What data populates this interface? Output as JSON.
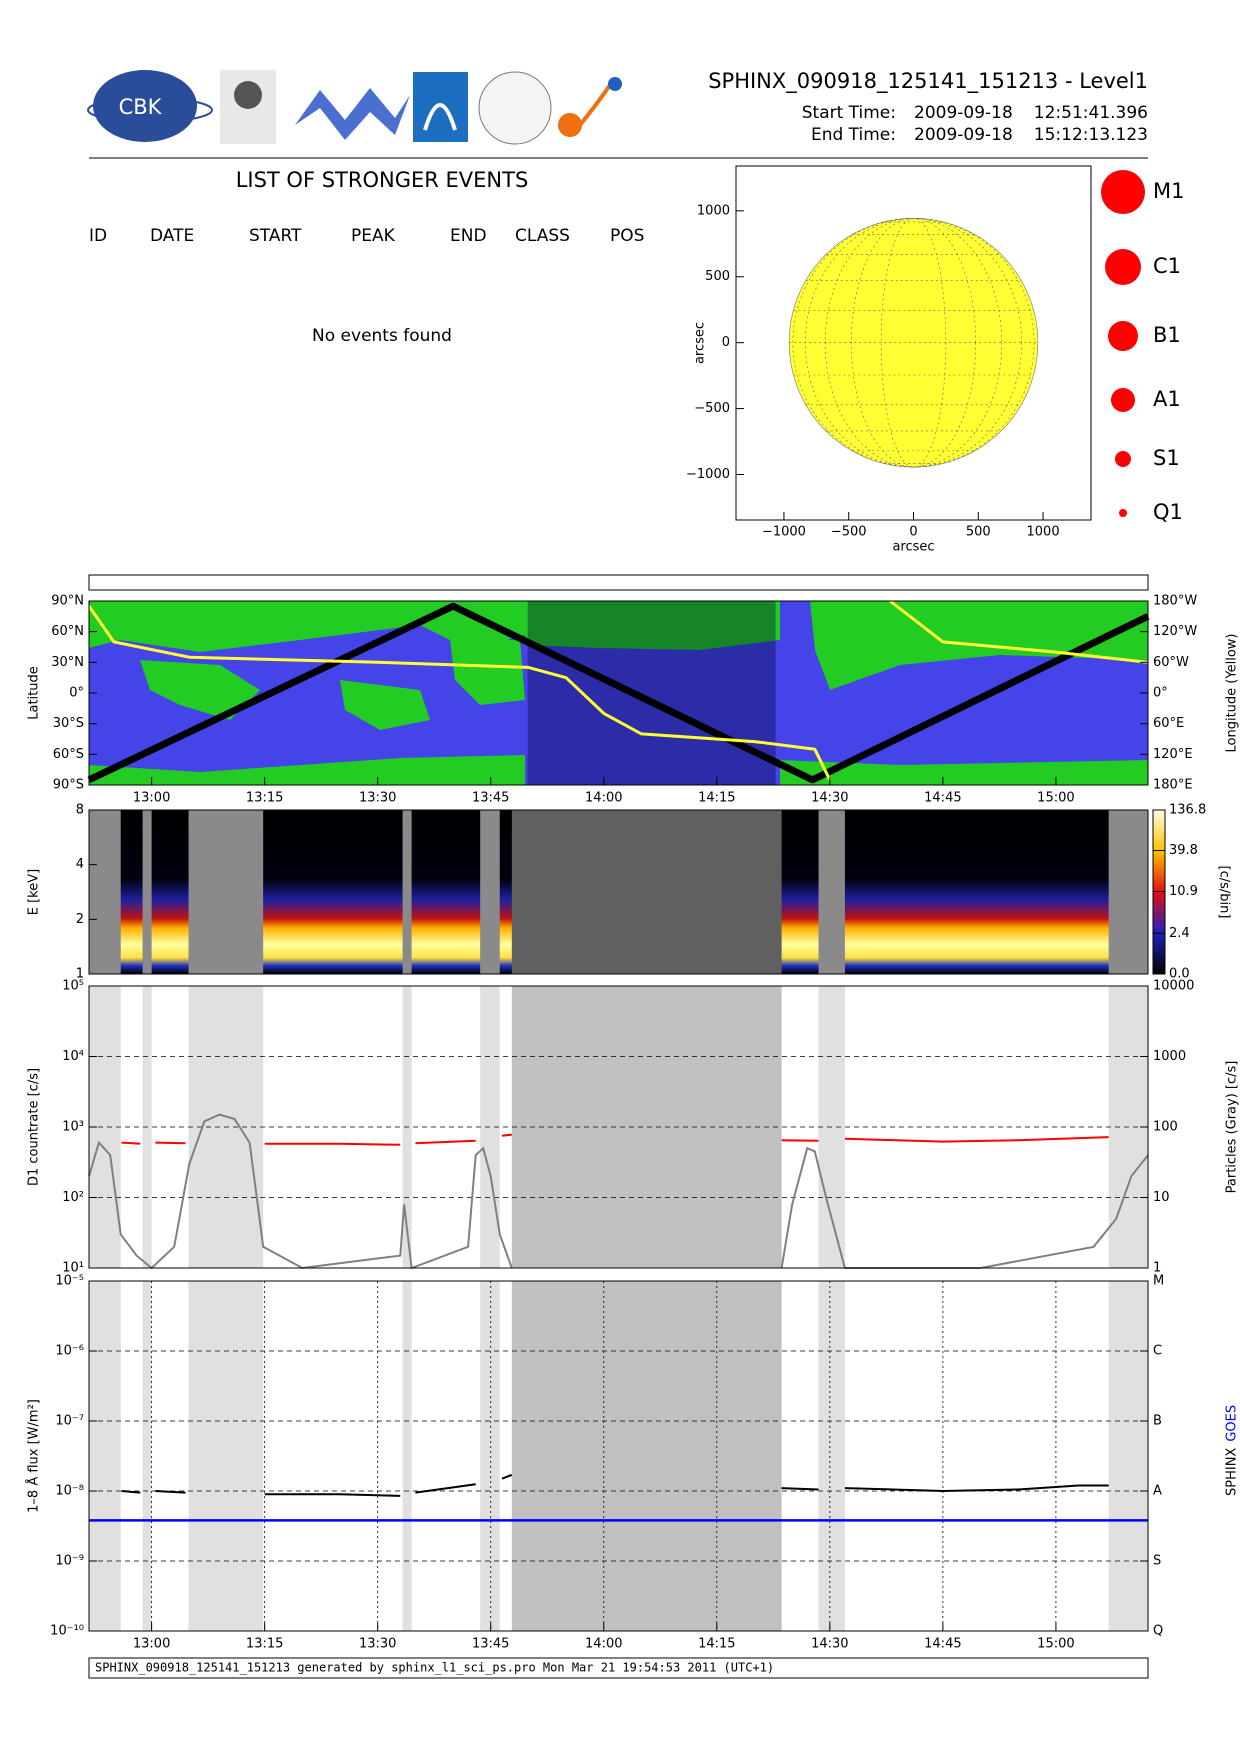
{
  "header": {
    "logo_text": "CBK",
    "title": "SPHINX_090918_125141_151213 - Level1",
    "start_label": "Start Time:",
    "start_date": "2009-09-18",
    "start_time": "12:51:41.396",
    "end_label": "End Time:",
    "end_date": "2009-09-18",
    "end_time": "15:12:13.123"
  },
  "events": {
    "title": "LIST OF STRONGER EVENTS",
    "columns": [
      "ID",
      "DATE",
      "START",
      "PEAK",
      "END",
      "CLASS",
      "POS"
    ],
    "message": "No events found"
  },
  "footer": "SPHINX_090918_125141_151213 generated by sphinx_l1_sci_ps.pro Mon Mar 21 19:54:53 2011 (UTC+1)",
  "coverage": {
    "no_data": [
      [
        771.69,
        775.9
      ],
      [
        778.8,
        780
      ],
      [
        784.9,
        794.8
      ],
      [
        813.3,
        814.5
      ],
      [
        823.6,
        826.2
      ],
      [
        868.5,
        872
      ],
      [
        907,
        912.22
      ]
    ],
    "eclipse": [
      827.8,
      863.6
    ]
  },
  "chart_data": [
    {
      "type": "disk",
      "xlabel": "arcsec",
      "ylabel": "arcsec",
      "xlim": [
        -1370,
        1370
      ],
      "ylim": [
        -1345,
        1340
      ],
      "xticks": [
        {
          "value": -1000,
          "label": "−1000"
        },
        {
          "value": -500,
          "label": "−500"
        },
        0,
        500,
        1000
      ],
      "yticks": [
        {
          "value": -1000,
          "label": "−1000"
        },
        {
          "value": -500,
          "label": "−500"
        },
        0,
        500,
        1000
      ],
      "disk_radius": 960,
      "disk_color": "#ffff33",
      "grid": true,
      "size_legend": {
        "labels": [
          "M1",
          "C1",
          "B1",
          "A1",
          "S1",
          "Q1"
        ],
        "color": "#ff0000"
      }
    },
    {
      "type": "orbit_map",
      "ylabel": "Latitude",
      "y2label": "Longitude (Yellow)",
      "xlim": [
        771.69,
        912.22
      ],
      "xticks": [
        {
          "value": 780,
          "label": "13:00"
        },
        {
          "value": 795,
          "label": "13:15"
        },
        {
          "value": 810,
          "label": "13:30"
        },
        {
          "value": 825,
          "label": "13:45"
        },
        {
          "value": 840,
          "label": "14:00"
        },
        {
          "value": 855,
          "label": "14:15"
        },
        {
          "value": 870,
          "label": "14:30"
        },
        {
          "value": 885,
          "label": "14:45"
        },
        {
          "value": 900,
          "label": "15:00"
        }
      ],
      "ylim": [
        -90,
        90
      ],
      "yticks": [
        {
          "value": 90,
          "label": "90°N"
        },
        {
          "value": 60,
          "label": "60°N"
        },
        {
          "value": 30,
          "label": "30°N"
        },
        {
          "value": 0,
          "label": "0°"
        },
        {
          "value": -30,
          "label": "30°S"
        },
        {
          "value": -60,
          "label": "60°S"
        },
        {
          "value": -90,
          "label": "90°S"
        }
      ],
      "y2lim": [
        -180,
        180
      ],
      "y2ticks": [
        {
          "value": 180,
          "label": "180°W"
        },
        {
          "value": 120,
          "label": "120°W"
        },
        {
          "value": 60,
          "label": "60°W"
        },
        {
          "value": 0,
          "label": "0°"
        },
        {
          "value": -60,
          "label": "60°E"
        },
        {
          "value": -120,
          "label": "120°E"
        },
        {
          "value": -180,
          "label": "180°E"
        }
      ],
      "shaded": [
        829.9,
        862.8
      ],
      "series": [
        {
          "color": "#000000",
          "x": [
            771.69,
            820,
            867.7,
            912.22
          ],
          "values": [
            -85,
            85,
            -85,
            75
          ]
        },
        {
          "color": "#ffff33",
          "axis": "y2",
          "x": [
            771.69,
            775,
            785,
            810,
            830,
            835,
            840,
            845,
            860,
            868,
            870,
            874,
            878,
            885,
            900,
            912.22
          ],
          "values": [
            170,
            100,
            70,
            60,
            50,
            30,
            -40,
            -80,
            -95,
            -110,
            -170,
            null,
            180,
            100,
            80,
            60
          ]
        }
      ]
    },
    {
      "type": "spectrogram",
      "ylabel": "E [keV]",
      "ylim": [
        1,
        8
      ],
      "yticks": [
        1,
        2,
        4,
        8
      ],
      "log_y": true,
      "xlim": [
        771.69,
        912.22
      ],
      "colorbar": {
        "label": "[c/s/bin]",
        "lim": [
          0,
          136.8
        ],
        "ticks": [
          {
            "value": 0,
            "label": "0.0"
          },
          2.4,
          10.9,
          39.8,
          136.8
        ]
      }
    },
    {
      "type": "line",
      "ylabel": "D1 countrate [c/s]",
      "y2label": "Particles (Gray) [c/s]",
      "log_y": true,
      "xlim": [
        771.69,
        912.22
      ],
      "ylim": [
        10,
        100000
      ],
      "yticks": [
        {
          "value": 10,
          "label": "10¹"
        },
        {
          "value": 100,
          "label": "10²"
        },
        {
          "value": 1000,
          "label": "10³"
        },
        {
          "value": 10000,
          "label": "10⁴"
        },
        {
          "value": 100000,
          "label": "10⁵"
        }
      ],
      "y2lim": [
        1,
        10000
      ],
      "y2ticks": [
        1,
        10,
        100,
        1000,
        10000
      ],
      "grid": true,
      "series": [
        {
          "color": "#ff0000",
          "x": [
            776,
            778.5,
            779.4,
            780.5,
            784.5,
            790,
            795,
            805,
            813,
            813.9,
            815,
            823,
            825,
            826.5,
            827.8,
            845,
            863.6,
            868.5,
            870,
            872,
            885,
            895,
            907
          ],
          "values": [
            600,
            580,
            null,
            600,
            590,
            null,
            580,
            580,
            560,
            null,
            590,
            640,
            null,
            750,
            780,
            null,
            650,
            640,
            null,
            680,
            620,
            650,
            720
          ]
        },
        {
          "color": "#808080",
          "axis": "y2",
          "x": [
            771.69,
            773,
            774.5,
            775.9,
            778,
            780,
            783,
            785,
            787,
            789,
            791,
            793,
            794.8,
            800,
            813,
            813.5,
            814.5,
            822,
            823,
            824,
            825,
            826.2,
            827.8,
            845,
            863.6,
            865,
            867,
            868,
            869.5,
            872,
            890,
            905,
            908,
            910,
            912.22
          ],
          "values": [
            20,
            60,
            40,
            3,
            1.5,
            1,
            2,
            30,
            120,
            150,
            130,
            60,
            2,
            1,
            1.5,
            8,
            1,
            2,
            40,
            50,
            20,
            3,
            1,
            null,
            1,
            8,
            50,
            45,
            10,
            1,
            1,
            2,
            5,
            20,
            40
          ]
        }
      ]
    },
    {
      "type": "line",
      "ylabel": "1–8 Å flux [W/m²]",
      "log_y": true,
      "xlim": [
        771.69,
        912.22
      ],
      "xticks": [
        {
          "value": 780,
          "label": "13:00"
        },
        {
          "value": 795,
          "label": "13:15"
        },
        {
          "value": 810,
          "label": "13:30"
        },
        {
          "value": 825,
          "label": "13:45"
        },
        {
          "value": 840,
          "label": "14:00"
        },
        {
          "value": 855,
          "label": "14:15"
        },
        {
          "value": 870,
          "label": "14:30"
        },
        {
          "value": 885,
          "label": "14:45"
        },
        {
          "value": 900,
          "label": "15:00"
        }
      ],
      "ylim": [
        1e-10,
        1e-05
      ],
      "yticks": [
        {
          "value": 1e-10,
          "label": "10⁻¹⁰"
        },
        {
          "value": 1e-09,
          "label": "10⁻⁹"
        },
        {
          "value": 1e-08,
          "label": "10⁻⁸"
        },
        {
          "value": 1e-07,
          "label": "10⁻⁷"
        },
        {
          "value": 1e-06,
          "label": "10⁻⁶"
        },
        {
          "value": 1e-05,
          "label": "10⁻⁵"
        }
      ],
      "y2ticks": [
        {
          "value": 1e-10,
          "label": "Q"
        },
        {
          "value": 1e-09,
          "label": "S"
        },
        {
          "value": 1e-08,
          "label": "A"
        },
        {
          "value": 1e-07,
          "label": "B"
        },
        {
          "value": 1e-06,
          "label": "C"
        },
        {
          "value": 1e-05,
          "label": "M"
        }
      ],
      "grid": true,
      "series": [
        {
          "name": "SPHINX",
          "color": "#000000",
          "x": [
            776,
            778.5,
            779.4,
            780.5,
            784.5,
            790,
            795,
            805,
            813,
            813.9,
            815,
            823,
            825,
            826.5,
            827.8,
            845,
            863.6,
            868.5,
            870,
            872,
            885,
            895,
            903,
            907
          ],
          "values": [
            1e-08,
            9.5e-09,
            null,
            1e-08,
            9.5e-09,
            null,
            9e-09,
            9e-09,
            8.5e-09,
            null,
            9.5e-09,
            1.25e-08,
            null,
            1.5e-08,
            1.7e-08,
            null,
            1.1e-08,
            1.05e-08,
            null,
            1.1e-08,
            1e-08,
            1.05e-08,
            1.2e-08,
            1.2e-08
          ]
        },
        {
          "name": "GOES",
          "color": "#0000ff",
          "x": [
            771.69,
            912.22
          ],
          "values": [
            3.8e-09,
            3.8e-09
          ]
        }
      ]
    }
  ]
}
